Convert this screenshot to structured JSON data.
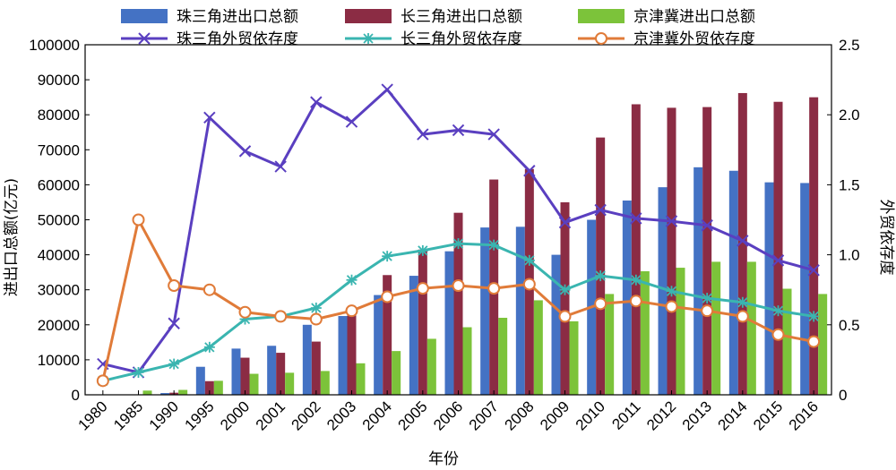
{
  "chart_data": {
    "type": "bar+line",
    "title": "",
    "xlabel": "年份",
    "ylabel": "进出口总额(亿元)",
    "y2label": "外贸依存度",
    "ylim": [
      0,
      100000
    ],
    "y2lim": [
      0,
      2.5
    ],
    "yticks": [
      "0",
      "10000",
      "20000",
      "30000",
      "40000",
      "50000",
      "60000",
      "70000",
      "80000",
      "90000",
      "100000"
    ],
    "y2ticks": [
      "0",
      "0.5",
      "1.0",
      "1.5",
      "2.0",
      "2.5"
    ],
    "categories": [
      "1980",
      "1985",
      "1990",
      "1995",
      "2000",
      "2001",
      "2002",
      "2003",
      "2004",
      "2005",
      "2006",
      "2007",
      "2008",
      "2009",
      "2010",
      "2011",
      "2012",
      "2013",
      "2014",
      "2015",
      "2016"
    ],
    "bar_series": [
      {
        "name": "珠三角进出口总额",
        "color": "#4472c4",
        "values": [
          0,
          0,
          500,
          8000,
          13200,
          14000,
          20000,
          22500,
          28500,
          34000,
          41000,
          47800,
          48000,
          40000,
          50000,
          55500,
          59300,
          65000,
          64000,
          60700,
          60500
        ]
      },
      {
        "name": "长三角进出口总额",
        "color": "#8b2c44",
        "values": [
          0,
          0,
          600,
          3900,
          10600,
          12000,
          15200,
          22700,
          34200,
          41500,
          52000,
          61500,
          64500,
          55000,
          73500,
          83000,
          82000,
          82200,
          86200,
          83700,
          85000
        ]
      },
      {
        "name": "京津冀进出口总额",
        "color": "#7cc33a",
        "values": [
          0,
          1200,
          1400,
          4000,
          6000,
          6300,
          6800,
          9000,
          12500,
          16000,
          19300,
          22000,
          27000,
          21000,
          28800,
          35300,
          36300,
          38000,
          38000,
          30300,
          28800
        ]
      }
    ],
    "line_series": [
      {
        "name": "珠三角外贸依存度",
        "color": "#5a3fc0",
        "marker": "x",
        "values": [
          0.22,
          0.16,
          0.51,
          1.98,
          1.74,
          1.63,
          2.09,
          1.95,
          2.18,
          1.86,
          1.89,
          1.86,
          1.6,
          1.23,
          1.32,
          1.26,
          1.24,
          1.21,
          1.1,
          0.96,
          0.89
        ]
      },
      {
        "name": "长三角外贸依存度",
        "color": "#3ab5b0",
        "marker": "asterisk",
        "values": [
          0.1,
          0.16,
          0.22,
          0.34,
          0.54,
          0.56,
          0.62,
          0.82,
          0.99,
          1.03,
          1.08,
          1.07,
          0.96,
          0.75,
          0.85,
          0.82,
          0.74,
          0.69,
          0.66,
          0.6,
          0.56
        ]
      },
      {
        "name": "京津冀外贸依存度",
        "color": "#e07b39",
        "marker": "circle",
        "values": [
          0.1,
          1.25,
          0.78,
          0.75,
          0.59,
          0.56,
          0.54,
          0.6,
          0.7,
          0.76,
          0.78,
          0.76,
          0.79,
          0.56,
          0.65,
          0.67,
          0.63,
          0.6,
          0.56,
          0.43,
          0.38
        ]
      }
    ],
    "legend_position": "top"
  }
}
